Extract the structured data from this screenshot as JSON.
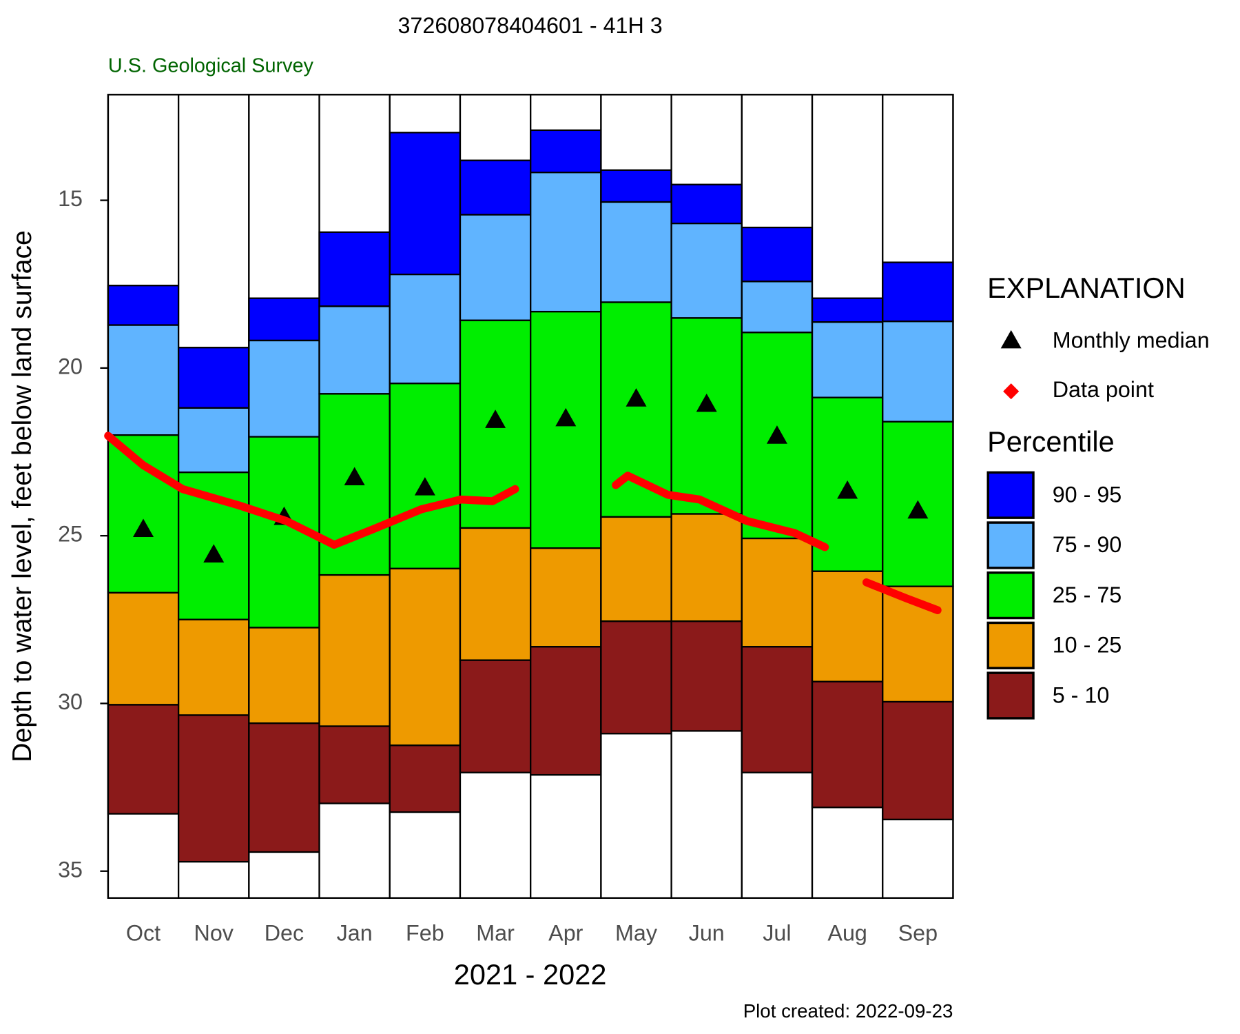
{
  "chart_data": {
    "type": "percentile-bar",
    "title": "372608078404601 - 41H  3",
    "subtitle": "U.S. Geological Survey",
    "ylabel": "Depth to water level, feet below land surface",
    "xlabel": "2021 - 2022",
    "footnote": "Plot created: 2022-09-23",
    "legend_title": "EXPLANATION",
    "percentile_title": "Percentile",
    "categories": [
      "Oct",
      "Nov",
      "Dec",
      "Jan",
      "Feb",
      "Mar",
      "Apr",
      "May",
      "Jun",
      "Jul",
      "Aug",
      "Sep"
    ],
    "ylim": [
      11.85,
      35.8
    ],
    "yticks": [
      15,
      20,
      25,
      30,
      35
    ],
    "inverted": true,
    "xlim": [
      0,
      12
    ],
    "series": [
      {
        "name": "90 - 95",
        "color": "#0000ff",
        "top": [
          17.54,
          19.39,
          17.92,
          15.95,
          12.98,
          13.81,
          12.91,
          14.1,
          14.53,
          15.81,
          17.92,
          16.85
        ],
        "bottom": [
          18.72,
          21.19,
          19.18,
          18.16,
          17.21,
          15.43,
          14.17,
          15.05,
          15.69,
          17.42,
          18.63,
          18.61
        ]
      },
      {
        "name": "75 - 90",
        "color": "#60b4ff",
        "top": [
          18.72,
          21.19,
          19.18,
          18.16,
          17.21,
          15.43,
          14.17,
          15.05,
          15.69,
          17.42,
          18.63,
          18.61
        ],
        "bottom": [
          22.0,
          23.11,
          22.05,
          20.77,
          20.46,
          18.58,
          18.32,
          18.04,
          18.51,
          18.94,
          20.88,
          21.6
        ]
      },
      {
        "name": "25 - 75",
        "color": "#00ee00",
        "top": [
          22.0,
          23.11,
          22.05,
          20.77,
          20.46,
          18.58,
          18.32,
          18.04,
          18.51,
          18.94,
          20.88,
          21.6
        ],
        "bottom": [
          26.7,
          27.5,
          27.74,
          26.17,
          25.98,
          24.77,
          25.37,
          24.44,
          24.35,
          25.08,
          26.06,
          26.51
        ]
      },
      {
        "name": "10 - 25",
        "color": "#ee9a00",
        "top": [
          26.7,
          27.5,
          27.74,
          26.17,
          25.98,
          24.77,
          25.37,
          24.44,
          24.35,
          25.08,
          26.06,
          26.51
        ],
        "bottom": [
          30.04,
          30.35,
          30.59,
          30.68,
          31.25,
          28.71,
          28.31,
          27.55,
          27.55,
          28.31,
          29.35,
          29.95
        ]
      },
      {
        "name": "5 - 10",
        "color": "#8b1a1a",
        "top": [
          30.04,
          30.35,
          30.59,
          30.68,
          31.25,
          28.71,
          28.31,
          27.55,
          27.55,
          28.31,
          29.35,
          29.95
        ],
        "bottom": [
          33.29,
          34.72,
          34.43,
          32.98,
          33.24,
          32.06,
          32.13,
          30.9,
          30.82,
          32.06,
          33.1,
          33.46
        ]
      }
    ],
    "median": {
      "name": "Monthly median",
      "color": "#000000",
      "values": [
        24.8,
        25.56,
        24.44,
        23.26,
        23.56,
        21.55,
        21.5,
        20.91,
        21.07,
        22.02,
        23.66,
        24.25
      ]
    },
    "points": {
      "name": "Data point",
      "color": "#ff0000",
      "x": [
        0,
        0.5,
        1.06,
        1.85,
        2.53,
        3.21,
        3.77,
        4.45,
        5.01,
        5.46,
        5.78,
        null,
        7.21,
        7.38,
        7.95,
        8.4,
        9.07,
        9.75,
        10.18,
        null,
        10.77,
        11.33,
        11.78
      ],
      "values": [
        22.02,
        22.9,
        23.61,
        24.09,
        24.56,
        25.27,
        24.8,
        24.21,
        23.92,
        23.97,
        23.61,
        null,
        23.49,
        23.21,
        23.78,
        23.92,
        24.56,
        24.92,
        25.34,
        null,
        26.39,
        26.86,
        27.22
      ]
    }
  }
}
